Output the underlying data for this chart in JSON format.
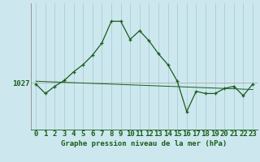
{
  "xlabel_label": "Graphe pression niveau de la mer (hPa)",
  "ylabel_value": 1027,
  "background_color": "#cce8ee",
  "plot_bg_color": "#cce8ee",
  "grid_color": "#aacdd4",
  "line_color": "#1a5c1a",
  "hours": [
    0,
    1,
    2,
    3,
    4,
    5,
    6,
    7,
    8,
    9,
    10,
    11,
    12,
    13,
    14,
    15,
    16,
    17,
    18,
    19,
    20,
    21,
    22,
    23
  ],
  "pressure": [
    1026.8,
    1025.5,
    1026.5,
    1027.3,
    1028.5,
    1029.5,
    1030.8,
    1032.5,
    1035.5,
    1035.5,
    1033.0,
    1034.2,
    1032.8,
    1031.0,
    1029.5,
    1027.2,
    1023.0,
    1025.8,
    1025.5,
    1025.5,
    1026.2,
    1026.5,
    1025.2,
    1026.8
  ],
  "trend": [
    1027.2,
    1027.15,
    1027.1,
    1027.05,
    1027.0,
    1026.95,
    1026.9,
    1026.85,
    1026.8,
    1026.75,
    1026.7,
    1026.65,
    1026.6,
    1026.55,
    1026.5,
    1026.45,
    1026.4,
    1026.35,
    1026.3,
    1026.25,
    1026.2,
    1026.15,
    1026.1,
    1026.05
  ],
  "ylim_min": 1020.5,
  "ylim_max": 1038.0,
  "ytick_value": 1027,
  "fontsize_xlabel": 6.5,
  "fontsize_ytick": 6.5
}
